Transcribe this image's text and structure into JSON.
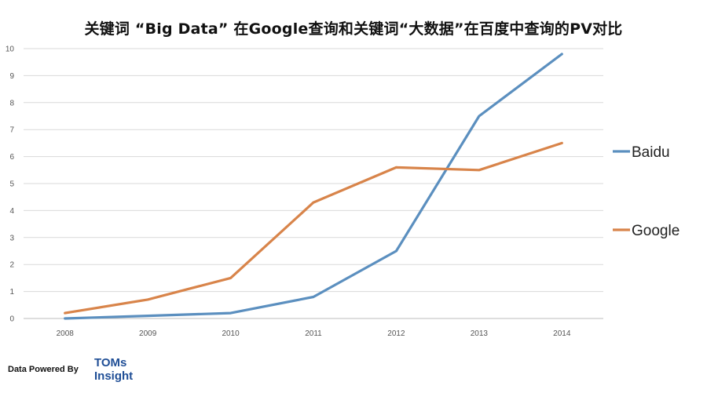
{
  "chart_data": {
    "type": "line",
    "title": "关键词 “Big Data” 在Google查询和关键词“大数据”在百度中查询的PV对比",
    "categories": [
      "2008",
      "2009",
      "2010",
      "2011",
      "2012",
      "2013",
      "2014"
    ],
    "y_ticks": [
      "0",
      "1",
      "2",
      "3",
      "4",
      "5",
      "6",
      "7",
      "8",
      "9",
      "10"
    ],
    "ylim": [
      0,
      10
    ],
    "grid": true,
    "legend_position": "right",
    "series": [
      {
        "name": "Baidu",
        "color": "#5b8fbf",
        "values": [
          0,
          0.1,
          0.2,
          0.8,
          2.5,
          7.5,
          9.8
        ]
      },
      {
        "name": "Google",
        "color": "#d8844a",
        "values": [
          0.2,
          0.7,
          1.5,
          4.3,
          5.6,
          5.5,
          6.5
        ]
      }
    ]
  },
  "footer": {
    "powered_by": "Data Powered By",
    "brand_line1": "TOMs",
    "brand_line2": "Insight"
  }
}
